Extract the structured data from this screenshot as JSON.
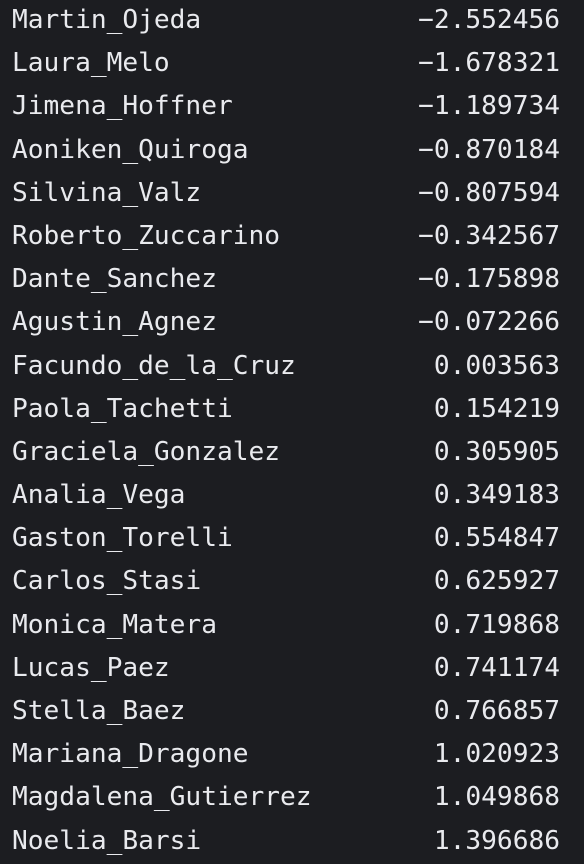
{
  "colors": {
    "background": "#1c1d21",
    "text": "#e9eaee"
  },
  "rows": [
    {
      "name": "Martin_Ojeda",
      "value": "−2.552456"
    },
    {
      "name": "Laura_Melo",
      "value": "−1.678321"
    },
    {
      "name": "Jimena_Hoffner",
      "value": "−1.189734"
    },
    {
      "name": "Aoniken_Quiroga",
      "value": "−0.870184"
    },
    {
      "name": "Silvina_Valz",
      "value": "−0.807594"
    },
    {
      "name": "Roberto_Zuccarino",
      "value": "−0.342567"
    },
    {
      "name": "Dante_Sanchez",
      "value": "−0.175898"
    },
    {
      "name": "Agustin_Agnez",
      "value": "−0.072266"
    },
    {
      "name": "Facundo_de_la_Cruz",
      "value": "0.003563"
    },
    {
      "name": "Paola_Tachetti",
      "value": "0.154219"
    },
    {
      "name": "Graciela_Gonzalez",
      "value": "0.305905"
    },
    {
      "name": "Analia_Vega",
      "value": "0.349183"
    },
    {
      "name": "Gaston_Torelli",
      "value": "0.554847"
    },
    {
      "name": "Carlos_Stasi",
      "value": "0.625927"
    },
    {
      "name": "Monica_Matera",
      "value": "0.719868"
    },
    {
      "name": "Lucas_Paez",
      "value": "0.741174"
    },
    {
      "name": "Stella_Baez",
      "value": "0.766857"
    },
    {
      "name": "Mariana_Dragone",
      "value": "1.020923"
    },
    {
      "name": "Magdalena_Gutierrez",
      "value": "1.049868"
    },
    {
      "name": "Noelia_Barsi",
      "value": "1.396686"
    }
  ]
}
